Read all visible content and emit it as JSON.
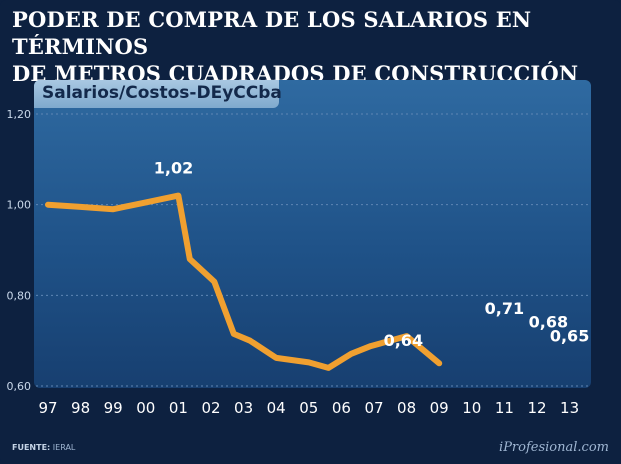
{
  "title": "PODER DE COMPRA DE LOS SALARIOS EN TÉRMINOS\nDE METROS CUADRADOS DE CONSTRUCCIÓN",
  "source_label": "FUENTE:",
  "source_value": "IERAL",
  "brand": "iProfesional.com",
  "colors": {
    "line": "#f0a030",
    "background": "#0d2140",
    "grid": "#5f86b4"
  },
  "chart_data": {
    "type": "line",
    "title": "Salarios/Costos-DEyCCba",
    "xlabel": "",
    "ylabel": "",
    "ylim": [
      0.6,
      1.2
    ],
    "yticks": [
      {
        "value": 0.6,
        "label": "0,60"
      },
      {
        "value": 0.8,
        "label": "0,80"
      },
      {
        "value": 1.0,
        "label": "1,00"
      },
      {
        "value": 1.2,
        "label": "1,20"
      }
    ],
    "categories": [
      "97",
      "98",
      "99",
      "00",
      "01",
      "02",
      "03",
      "04",
      "05",
      "06",
      "07",
      "08",
      "09",
      "10",
      "11",
      "12",
      "13"
    ],
    "x": [
      0,
      1,
      2,
      3,
      4,
      4.35,
      5.1,
      5.7,
      6.2,
      7.0,
      8.0,
      8.6,
      9.3,
      9.9,
      11.0,
      12.0
    ],
    "values": [
      1.0,
      0.995,
      0.99,
      1.005,
      1.02,
      0.88,
      0.83,
      0.715,
      0.7,
      0.662,
      0.652,
      0.64,
      0.671,
      0.688,
      0.71,
      0.65
    ],
    "annotations": [
      {
        "x": 3.85,
        "y": 1.02,
        "label": "1,02"
      },
      {
        "x": 10.9,
        "y": 0.64,
        "label": "0,64"
      },
      {
        "x": 14.0,
        "y": 0.71,
        "label": "0,71"
      },
      {
        "x": 15.35,
        "y": 0.68,
        "label": "0,68"
      },
      {
        "x": 16.0,
        "y": 0.65,
        "label": "0,65"
      }
    ]
  }
}
